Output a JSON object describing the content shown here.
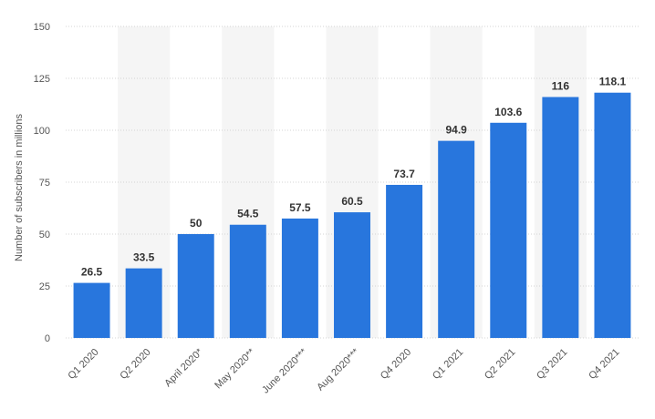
{
  "chart_data": {
    "type": "bar",
    "categories": [
      "Q1 2020",
      "Q2 2020",
      "April 2020*",
      "May 2020**",
      "June 2020***",
      "Aug 2020***",
      "Q4 2020",
      "Q1 2021",
      "Q2 2021",
      "Q3 2021",
      "Q4 2021"
    ],
    "values": [
      26.5,
      33.5,
      50,
      54.5,
      57.5,
      60.5,
      73.7,
      94.9,
      103.6,
      116,
      118.1
    ],
    "value_labels": [
      "26.5",
      "33.5",
      "50",
      "54.5",
      "57.5",
      "60.5",
      "73.7",
      "94.9",
      "103.6",
      "116",
      "118.1"
    ],
    "title": "",
    "xlabel": "",
    "ylabel": "Number of subscribers in millions",
    "ylim": [
      0,
      150
    ],
    "yticks": [
      0,
      25,
      50,
      75,
      100,
      125,
      150
    ],
    "grid": true,
    "colors": {
      "bar": "#2876dd",
      "band": "#f5f5f5",
      "grid": "#d4d4d4"
    }
  }
}
